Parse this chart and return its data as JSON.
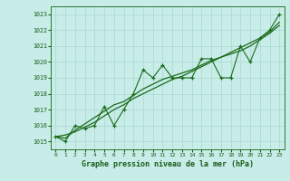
{
  "x": [
    0,
    1,
    2,
    3,
    4,
    5,
    6,
    7,
    8,
    9,
    10,
    11,
    12,
    13,
    14,
    15,
    16,
    17,
    18,
    19,
    20,
    21,
    22,
    23
  ],
  "y_main": [
    1015.3,
    1015.0,
    1016.0,
    1015.8,
    1016.0,
    1017.2,
    1016.0,
    1017.0,
    1018.0,
    1019.5,
    1019.0,
    1019.8,
    1019.0,
    1019.0,
    1019.0,
    1020.2,
    1020.2,
    1019.0,
    1019.0,
    1021.0,
    1020.0,
    1021.5,
    1022.0,
    1023.0
  ],
  "y_smooth": [
    1015.3,
    1015.2,
    1015.7,
    1016.1,
    1016.5,
    1016.9,
    1017.3,
    1017.5,
    1017.9,
    1018.3,
    1018.6,
    1018.9,
    1019.1,
    1019.3,
    1019.5,
    1019.8,
    1020.1,
    1020.3,
    1020.5,
    1020.7,
    1021.0,
    1021.4,
    1021.8,
    1022.3
  ],
  "y_trend": [
    1015.3,
    1015.4,
    1015.6,
    1015.9,
    1016.2,
    1016.6,
    1017.0,
    1017.3,
    1017.7,
    1018.0,
    1018.3,
    1018.6,
    1018.9,
    1019.1,
    1019.4,
    1019.7,
    1020.0,
    1020.3,
    1020.6,
    1020.9,
    1021.2,
    1021.5,
    1021.9,
    1022.5
  ],
  "ylim": [
    1014.5,
    1023.5
  ],
  "xlim": [
    -0.5,
    23.5
  ],
  "yticks": [
    1015,
    1016,
    1017,
    1018,
    1019,
    1020,
    1021,
    1022,
    1023
  ],
  "xticks": [
    0,
    1,
    2,
    3,
    4,
    5,
    6,
    7,
    8,
    9,
    10,
    11,
    12,
    13,
    14,
    15,
    16,
    17,
    18,
    19,
    20,
    21,
    22,
    23
  ],
  "xlabel": "Graphe pression niveau de la mer (hPa)",
  "line_color": "#1a6b1a",
  "bg_color": "#c8ece8",
  "grid_color": "#a8d8d0",
  "text_color": "#1a5c1a",
  "spine_color": "#2a7a2a"
}
